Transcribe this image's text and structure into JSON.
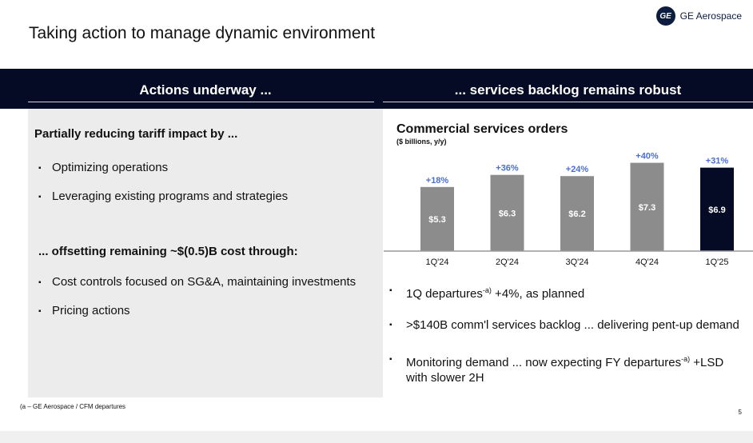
{
  "header": {
    "title": "Taking action to manage dynamic environment",
    "logo_mark": "GE",
    "logo_text": "GE Aerospace"
  },
  "band": {
    "left_heading": "Actions underway ...",
    "right_heading": "... services backlog remains robust"
  },
  "left": {
    "subheading1": "Partially reducing tariff impact by ...",
    "bullets1": [
      "Optimizing operations",
      "Leveraging existing programs and strategies"
    ],
    "subheading2": "... offsetting remaining ~$(0.5)B cost through:",
    "bullets2": [
      "Cost controls focused on SG&A, maintaining investments",
      "Pricing actions"
    ]
  },
  "chart_data": {
    "type": "bar",
    "title": "Commercial services orders",
    "subtitle": "($ billions, y/y)",
    "categories": [
      "1Q'24",
      "2Q'24",
      "3Q'24",
      "4Q'24",
      "1Q'25"
    ],
    "values": [
      5.3,
      6.3,
      6.2,
      7.3,
      6.9
    ],
    "value_labels": [
      "$5.3",
      "$6.3",
      "$6.2",
      "$7.3",
      "$6.9"
    ],
    "growth_labels": [
      "+18%",
      "+36%",
      "+24%",
      "+40%",
      "+31%"
    ],
    "colors": [
      "#8c8c8c",
      "#8c8c8c",
      "#8c8c8c",
      "#8c8c8c",
      "#050b24"
    ],
    "growth_color": "#4a6fd0",
    "ylim": [
      0,
      8
    ]
  },
  "right": {
    "b1_pre": "1Q departures",
    "b1_sup": "-a)",
    "b1_post": " +4%, as planned",
    "b2": ">$140B comm'l services backlog ... delivering pent-up demand",
    "b3_pre": "Monitoring demand ... now expecting FY departures",
    "b3_sup": "-a)",
    "b3_post": " +LSD",
    "b3_line2": "with slower 2H"
  },
  "footer": {
    "footnote": "(a – GE Aerospace / CFM departures",
    "page": "5"
  }
}
